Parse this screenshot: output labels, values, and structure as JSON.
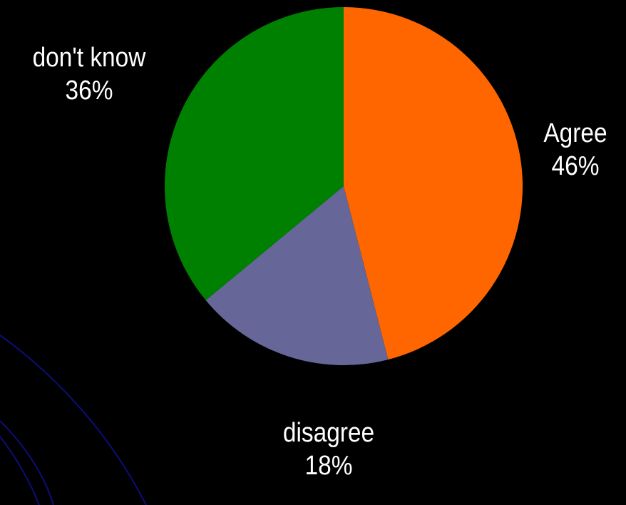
{
  "colors": {
    "background": "#000000",
    "decoration_line": "#0d0d7a",
    "label_text": "#ffffff"
  },
  "chart_data": {
    "type": "pie",
    "title": "",
    "start_angle_deg": 0,
    "direction": "clockwise",
    "slices": [
      {
        "key": "agree",
        "label": "Agree",
        "value": 46,
        "value_label": "46%",
        "color": "#ff6600"
      },
      {
        "key": "disagree",
        "label": "disagree",
        "value": 18,
        "value_label": "18%",
        "color": "#666699"
      },
      {
        "key": "dontknow",
        "label": "don't know",
        "value": 36,
        "value_label": "36%",
        "color": "#008000"
      }
    ]
  }
}
